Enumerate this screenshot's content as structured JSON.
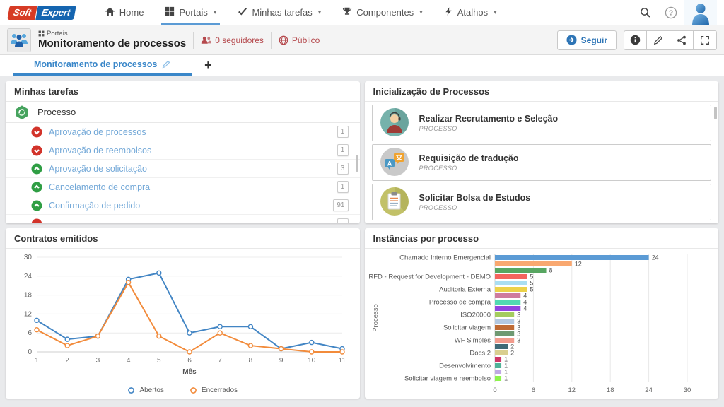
{
  "navbar": {
    "logo": {
      "part1": "Soft",
      "part2": "Expert"
    },
    "items": [
      {
        "label": "Home",
        "icon": "home-icon",
        "caret": false,
        "active": false
      },
      {
        "label": "Portais",
        "icon": "grid-icon",
        "caret": true,
        "active": true
      },
      {
        "label": "Minhas tarefas",
        "icon": "check-icon",
        "caret": true,
        "active": false
      },
      {
        "label": "Componentes",
        "icon": "trophy-icon",
        "caret": true,
        "active": false
      },
      {
        "label": "Atalhos",
        "icon": "shortcut-icon",
        "caret": true,
        "active": false
      }
    ],
    "right_icons": [
      "search-icon",
      "help-icon",
      "user-avatar"
    ]
  },
  "page_header": {
    "breadcrumb": "Portais",
    "title": "Monitoramento de processos",
    "followers": "0 seguidores",
    "visibility": "Público",
    "follow_button": "Seguir",
    "accent_red": "#b5494d",
    "accent_blue": "#2e75b6"
  },
  "tabs": {
    "active": "Monitoramento de processos",
    "add_label": "+"
  },
  "tasks_panel": {
    "title": "Minhas tarefas",
    "group": "Processo",
    "items": [
      {
        "label": "Aprovação de processos",
        "count": "1",
        "direction": "down"
      },
      {
        "label": "Aprovação de reembolsos",
        "count": "1",
        "direction": "down"
      },
      {
        "label": "Aprovação de solicitação",
        "count": "3",
        "direction": "up"
      },
      {
        "label": "Cancelamento de compra",
        "count": "1",
        "direction": "up"
      },
      {
        "label": "Confirmação de pedido",
        "count": "91",
        "direction": "up"
      }
    ],
    "partial_item": {
      "direction": "down"
    }
  },
  "process_panel": {
    "title": "Inicialização de Processos",
    "cards": [
      {
        "title": "Realizar Recrutamento e Seleção",
        "subtitle": "PROCESSO",
        "avatar": "recruiter-avatar"
      },
      {
        "title": "Requisição de tradução",
        "subtitle": "PROCESSO",
        "avatar": "translation-avatar"
      },
      {
        "title": "Solicitar Bolsa de Estudos",
        "subtitle": "PROCESSO",
        "avatar": "scholarship-avatar"
      }
    ]
  },
  "chart_data": [
    {
      "type": "line",
      "title": "Contratos emitidos",
      "x": [
        1,
        2,
        3,
        4,
        5,
        6,
        7,
        8,
        9,
        10,
        11
      ],
      "series": [
        {
          "name": "Abertos",
          "color": "#4285c4",
          "values": [
            10,
            4,
            5,
            23,
            25,
            6,
            8,
            8,
            1,
            3,
            1
          ]
        },
        {
          "name": "Encerrados",
          "color": "#f28b3b",
          "values": [
            7,
            2,
            5,
            22,
            5,
            0,
            6,
            2,
            1,
            0,
            0
          ]
        }
      ],
      "xlabel": "Mês",
      "ylabel": "",
      "ylim": [
        0,
        30
      ],
      "yticks": [
        0,
        6,
        12,
        18,
        24,
        30
      ],
      "grid": true,
      "legend_position": "bottom"
    },
    {
      "type": "bar",
      "title": "Instâncias por processo",
      "orientation": "horizontal",
      "ylabel": "Processo",
      "xlabel": "",
      "xlim": [
        0,
        30
      ],
      "xticks": [
        0,
        6,
        12,
        18,
        24,
        30
      ],
      "grid": true,
      "bars": [
        {
          "label": "Chamado Interno Emergencial",
          "value": 24,
          "color": "#5b9bd5"
        },
        {
          "label": "",
          "value": 12,
          "color": "#f9a870"
        },
        {
          "label": "",
          "value": 8,
          "color": "#57a661"
        },
        {
          "label": "RFD - Request for Development - DEMO",
          "value": 5,
          "color": "#f4645e"
        },
        {
          "label": "",
          "value": 5,
          "color": "#aadef2"
        },
        {
          "label": "Auditoria Externa",
          "value": 5,
          "color": "#ecd24a"
        },
        {
          "label": "",
          "value": 4,
          "color": "#cf7b9e"
        },
        {
          "label": "Processo de compra",
          "value": 4,
          "color": "#52dab2"
        },
        {
          "label": "",
          "value": 4,
          "color": "#9146e0"
        },
        {
          "label": "ISO20000",
          "value": 3,
          "color": "#a4cc5f"
        },
        {
          "label": "",
          "value": 3,
          "color": "#b3c9e2"
        },
        {
          "label": "Solicitar viagem",
          "value": 3,
          "color": "#bf6b35"
        },
        {
          "label": "",
          "value": 3,
          "color": "#6f9972"
        },
        {
          "label": "WF Simples",
          "value": 3,
          "color": "#f29b8d"
        },
        {
          "label": "",
          "value": 2,
          "color": "#3f6a77"
        },
        {
          "label": "Docs 2",
          "value": 2,
          "color": "#d9cf90"
        },
        {
          "label": "",
          "value": 1,
          "color": "#ce3767"
        },
        {
          "label": "Desenvolvimento",
          "value": 1,
          "color": "#50b298"
        },
        {
          "label": "",
          "value": 1,
          "color": "#bfa8e3"
        },
        {
          "label": "Solicitar viagem e reembolso",
          "value": 1,
          "color": "#8df34c"
        }
      ]
    }
  ]
}
